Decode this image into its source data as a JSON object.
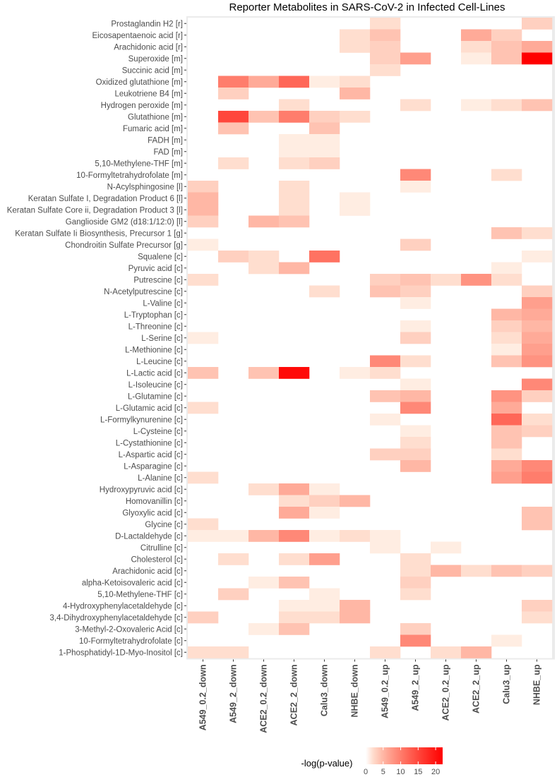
{
  "chart_data": {
    "type": "heatmap",
    "title": "Reporter Metabolites in SARS-CoV-2 in Infected Cell-Lines",
    "xlabel": "",
    "ylabel": "",
    "columns": [
      "A549_0.2_down",
      "A549_2_down",
      "ACE2_0.2_down",
      "ACE2_2_down",
      "Calu3_down",
      "NHBE_down",
      "A549_0.2_up",
      "A549_2_up",
      "ACE2_0.2_up",
      "ACE2_2_up",
      "Calu3_up",
      "NHBE_up"
    ],
    "rows": [
      {
        "label": "Prostaglandin H2 [r]",
        "values": [
          0,
          0,
          0,
          0,
          0,
          0,
          2,
          0,
          0,
          0,
          0,
          3
        ]
      },
      {
        "label": "Eicosapentaenoic acid [r]",
        "values": [
          0,
          0,
          0,
          0,
          0,
          2,
          4,
          0,
          0,
          6,
          3,
          0
        ]
      },
      {
        "label": "Arachidonic acid [r]",
        "values": [
          0,
          0,
          0,
          0,
          0,
          2,
          3,
          0,
          0,
          2,
          4,
          6
        ]
      },
      {
        "label": "Superoxide [m]",
        "values": [
          0,
          0,
          0,
          0,
          0,
          0,
          3,
          7,
          0,
          1,
          4,
          22
        ]
      },
      {
        "label": "Succinic acid [m]",
        "values": [
          0,
          0,
          0,
          0,
          0,
          0,
          2,
          0,
          0,
          0,
          0,
          0
        ]
      },
      {
        "label": "Oxidized glutathione [m]",
        "values": [
          0,
          10,
          6,
          12,
          1,
          2,
          0,
          0,
          0,
          0,
          0,
          0
        ]
      },
      {
        "label": "Leukotriene B4 [m]",
        "values": [
          0,
          3,
          0,
          0,
          0,
          5,
          0,
          0,
          0,
          0,
          0,
          0
        ]
      },
      {
        "label": "Hydrogen peroxide [m]",
        "values": [
          0,
          0,
          0,
          2,
          0,
          0,
          0,
          2,
          0,
          1,
          2,
          4
        ]
      },
      {
        "label": "Glutathione [m]",
        "values": [
          0,
          15,
          4,
          10,
          3,
          2,
          0,
          0,
          0,
          0,
          0,
          0
        ]
      },
      {
        "label": "Fumaric acid [m]",
        "values": [
          0,
          4,
          0,
          0,
          4,
          0,
          0,
          0,
          0,
          0,
          0,
          0
        ]
      },
      {
        "label": "FADH [m]",
        "values": [
          0,
          0,
          0,
          1,
          1,
          0,
          0,
          0,
          0,
          0,
          0,
          0
        ]
      },
      {
        "label": "FAD [m]",
        "values": [
          0,
          0,
          0,
          1,
          1,
          0,
          0,
          0,
          0,
          0,
          0,
          0
        ]
      },
      {
        "label": "5,10-Methylene-THF [m]",
        "values": [
          0,
          2,
          0,
          2,
          3,
          0,
          0,
          0,
          0,
          0,
          0,
          0
        ]
      },
      {
        "label": "10-Formyltetrahydrofolate [m]",
        "values": [
          0,
          0,
          0,
          0,
          0,
          0,
          0,
          9,
          0,
          0,
          2,
          0
        ]
      },
      {
        "label": "N-Acylsphingosine [l]",
        "values": [
          3,
          0,
          0,
          2,
          0,
          0,
          0,
          1,
          0,
          0,
          0,
          0
        ]
      },
      {
        "label": "Keratan Sulfate I, Degradation Product 6 [l]",
        "values": [
          5,
          0,
          0,
          2,
          0,
          1,
          0,
          0,
          0,
          0,
          0,
          0
        ]
      },
      {
        "label": "Keratan Sulfate Core ii, Degradation Product 3 [l]",
        "values": [
          5,
          0,
          0,
          2,
          0,
          1,
          0,
          0,
          0,
          0,
          0,
          0
        ]
      },
      {
        "label": "Ganglioside GM2 (d18:1/12:0) [l]",
        "values": [
          3,
          0,
          5,
          4,
          0,
          0,
          0,
          0,
          0,
          0,
          0,
          0
        ]
      },
      {
        "label": "Keratan Sulfate Ii Biosynthesis, Precursor 1 [g]",
        "values": [
          0,
          0,
          0,
          0,
          0,
          0,
          0,
          0,
          0,
          0,
          4,
          2
        ]
      },
      {
        "label": "Chondroitin Sulfate Precursor  [g]",
        "values": [
          1,
          0,
          0,
          0,
          0,
          0,
          0,
          3,
          0,
          0,
          0,
          0
        ]
      },
      {
        "label": "Squalene [c]",
        "values": [
          0,
          3,
          2,
          0,
          11,
          0,
          0,
          0,
          0,
          0,
          0,
          1
        ]
      },
      {
        "label": "Pyruvic acid [c]",
        "values": [
          0,
          0,
          2,
          5,
          0,
          0,
          0,
          0,
          0,
          0,
          1,
          0
        ]
      },
      {
        "label": "Putrescine [c]",
        "values": [
          2,
          0,
          0,
          0,
          0,
          0,
          3,
          4,
          2,
          8,
          2,
          0
        ]
      },
      {
        "label": "N-Acetylputrescine [c]",
        "values": [
          0,
          0,
          0,
          0,
          2,
          0,
          4,
          3,
          0,
          0,
          0,
          3
        ]
      },
      {
        "label": "L-Valine [c]",
        "values": [
          0,
          0,
          0,
          0,
          0,
          0,
          0,
          1,
          0,
          0,
          0,
          7
        ]
      },
      {
        "label": "L-Tryptophan [c]",
        "values": [
          0,
          0,
          0,
          0,
          0,
          0,
          0,
          0,
          0,
          0,
          5,
          6
        ]
      },
      {
        "label": "L-Threonine [c]",
        "values": [
          0,
          0,
          0,
          0,
          0,
          0,
          0,
          1,
          0,
          0,
          3,
          5
        ]
      },
      {
        "label": "L-Serine [c]",
        "values": [
          1,
          0,
          0,
          0,
          0,
          0,
          0,
          3,
          0,
          0,
          2,
          6
        ]
      },
      {
        "label": "L-Methionine [c]",
        "values": [
          0,
          0,
          0,
          0,
          0,
          0,
          0,
          0,
          0,
          0,
          1,
          7
        ]
      },
      {
        "label": "L-Leucine [c]",
        "values": [
          0,
          0,
          0,
          0,
          0,
          0,
          9,
          2,
          0,
          0,
          4,
          8
        ]
      },
      {
        "label": "L-Lactic acid [c]",
        "values": [
          4,
          0,
          4,
          21,
          0,
          1,
          2,
          0,
          0,
          0,
          0,
          0
        ]
      },
      {
        "label": "L-Isoleucine [c]",
        "values": [
          0,
          0,
          0,
          0,
          0,
          0,
          0,
          1,
          0,
          0,
          0,
          9
        ]
      },
      {
        "label": "L-Glutamine [c]",
        "values": [
          0,
          0,
          0,
          0,
          0,
          0,
          4,
          5,
          0,
          0,
          8,
          3
        ]
      },
      {
        "label": "L-Glutamic acid [c]",
        "values": [
          2,
          0,
          0,
          0,
          0,
          0,
          0,
          9,
          0,
          0,
          6,
          0
        ]
      },
      {
        "label": "L-Formylkynurenine [c]",
        "values": [
          0,
          0,
          0,
          0,
          0,
          0,
          1,
          0,
          0,
          0,
          12,
          2
        ]
      },
      {
        "label": "L-Cysteine [c]",
        "values": [
          0,
          0,
          0,
          0,
          0,
          0,
          0,
          1,
          0,
          0,
          4,
          3
        ]
      },
      {
        "label": "L-Cystathionine [c]",
        "values": [
          0,
          0,
          0,
          0,
          0,
          0,
          0,
          2,
          0,
          0,
          4,
          0
        ]
      },
      {
        "label": "L-Aspartic acid [c]",
        "values": [
          0,
          0,
          0,
          0,
          0,
          0,
          3,
          3,
          0,
          0,
          2,
          0
        ]
      },
      {
        "label": "L-Asparagine [c]",
        "values": [
          0,
          0,
          0,
          0,
          0,
          0,
          0,
          5,
          0,
          0,
          6,
          9
        ]
      },
      {
        "label": "L-Alanine [c]",
        "values": [
          2,
          0,
          0,
          0,
          0,
          0,
          0,
          0,
          0,
          0,
          7,
          10
        ]
      },
      {
        "label": "Hydroxypyruvic acid [c]",
        "values": [
          0,
          0,
          2,
          6,
          1,
          0,
          0,
          0,
          0,
          0,
          0,
          0
        ]
      },
      {
        "label": "Homovanillin [c]",
        "values": [
          0,
          0,
          0,
          2,
          3,
          5,
          0,
          0,
          0,
          0,
          0,
          0
        ]
      },
      {
        "label": "Glyoxylic acid [c]",
        "values": [
          0,
          0,
          0,
          6,
          1,
          0,
          0,
          0,
          0,
          0,
          0,
          4
        ]
      },
      {
        "label": "Glycine [c]",
        "values": [
          2,
          0,
          0,
          0,
          0,
          0,
          0,
          0,
          0,
          0,
          0,
          4
        ]
      },
      {
        "label": "D-Lactaldehyde [c]",
        "values": [
          1,
          1,
          5,
          9,
          1,
          2,
          1,
          0,
          0,
          0,
          0,
          0
        ]
      },
      {
        "label": "Citrulline [c]",
        "values": [
          0,
          0,
          0,
          0,
          0,
          0,
          1,
          0,
          1,
          0,
          0,
          0
        ]
      },
      {
        "label": "Cholesterol [c]",
        "values": [
          0,
          2,
          0,
          2,
          7,
          0,
          0,
          2,
          0,
          0,
          0,
          0
        ]
      },
      {
        "label": "Arachidonic acid [c]",
        "values": [
          0,
          0,
          0,
          0,
          0,
          0,
          0,
          2,
          5,
          2,
          4,
          3
        ]
      },
      {
        "label": "alpha-Ketoisovaleric acid [c]",
        "values": [
          0,
          0,
          1,
          4,
          0,
          0,
          0,
          3,
          0,
          0,
          0,
          0
        ]
      },
      {
        "label": "5,10-Methylene-THF [c]",
        "values": [
          0,
          3,
          0,
          0,
          1,
          0,
          0,
          2,
          0,
          0,
          0,
          0
        ]
      },
      {
        "label": "4-Hydroxyphenylacetaldehyde [c]",
        "values": [
          0,
          0,
          0,
          1,
          1,
          5,
          0,
          0,
          0,
          0,
          0,
          3
        ]
      },
      {
        "label": "3,4-Dihydroxyphenylacetaldehyde [c]",
        "values": [
          3,
          0,
          0,
          2,
          2,
          5,
          0,
          0,
          0,
          0,
          0,
          2
        ]
      },
      {
        "label": "3-Methyl-2-Oxovaleric Acid [c]",
        "values": [
          0,
          0,
          1,
          4,
          0,
          0,
          0,
          3,
          0,
          0,
          0,
          0
        ]
      },
      {
        "label": "10-Formyltetrahydrofolate [c]",
        "values": [
          0,
          0,
          0,
          0,
          0,
          0,
          0,
          9,
          0,
          0,
          1,
          0
        ]
      },
      {
        "label": "1-Phosphatidyl-1D-Myo-Inositol [c]",
        "values": [
          2,
          2,
          0,
          0,
          0,
          0,
          2,
          0,
          2,
          5,
          0,
          0
        ]
      }
    ],
    "legend": {
      "title": "-log(p-value)",
      "ticks": [
        "0",
        "5",
        "10",
        "15",
        "20"
      ],
      "tick_values": [
        0,
        5,
        10,
        15,
        20
      ],
      "range": [
        0,
        22
      ],
      "placement": "bottom"
    },
    "colors": {
      "low": "#ffffff",
      "high": "#ff0000",
      "panel_background": "#ebebeb",
      "label_color": "#4d4d4d"
    }
  }
}
